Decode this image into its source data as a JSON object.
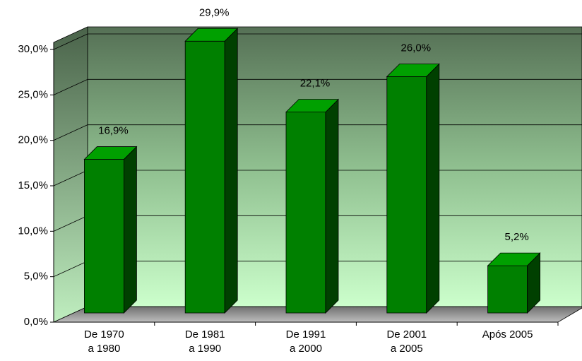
{
  "chart_data": {
    "type": "bar3d",
    "categories": [
      [
        "De 1970",
        "a 1980"
      ],
      [
        "De 1981",
        "a 1990"
      ],
      [
        "De 1991",
        "a 2000"
      ],
      [
        "De 2001",
        "a 2005"
      ],
      [
        "Após 2005"
      ]
    ],
    "values": [
      16.9,
      29.9,
      22.1,
      26.0,
      5.2
    ],
    "value_labels": [
      "16,9%",
      "29,9%",
      "22,1%",
      "26,0%",
      "5,2%"
    ],
    "color": "#008000",
    "ylim": [
      0,
      30
    ],
    "yticks": [
      {
        "value": 0,
        "label": "0,0%"
      },
      {
        "value": 5,
        "label": "5,0%"
      },
      {
        "value": 10,
        "label": "10,0%"
      },
      {
        "value": 15,
        "label": "15,0%"
      },
      {
        "value": 20,
        "label": "20,0%"
      },
      {
        "value": 25,
        "label": "25,0%"
      },
      {
        "value": 30,
        "label": "30,0%"
      }
    ],
    "grid": true
  }
}
